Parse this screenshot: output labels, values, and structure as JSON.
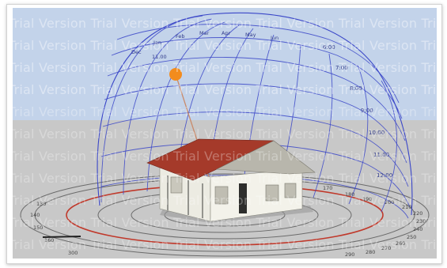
{
  "watermark": {
    "text": "Trial Version Trial Version Trial Version Trial Version Trial Version Trial Ver"
  },
  "sun_path": {
    "hour_labels": [
      "6:00",
      "7:00",
      "8:00",
      "9:00",
      "10:00",
      "11:00",
      "12:00"
    ],
    "month_labels": [
      "Dec",
      "Jan",
      "Feb",
      "Mar",
      "Apr",
      "May",
      "Jun"
    ],
    "compass_labels": [
      "180",
      "170",
      "190",
      "200",
      "210",
      "220",
      "230",
      "240",
      "250",
      "260",
      "270",
      "280",
      "290",
      "300",
      "160",
      "150",
      "140",
      "130"
    ],
    "sun_label": "11.00"
  },
  "colors": {
    "sky": "#c3d3ea",
    "ground": "#c9c9c9",
    "grid_lines": "#3a46c8",
    "sun": "#f28c1e",
    "roof": "#a53a2a",
    "walls": "#f0efe6",
    "ring_accent": "#c0392b"
  }
}
